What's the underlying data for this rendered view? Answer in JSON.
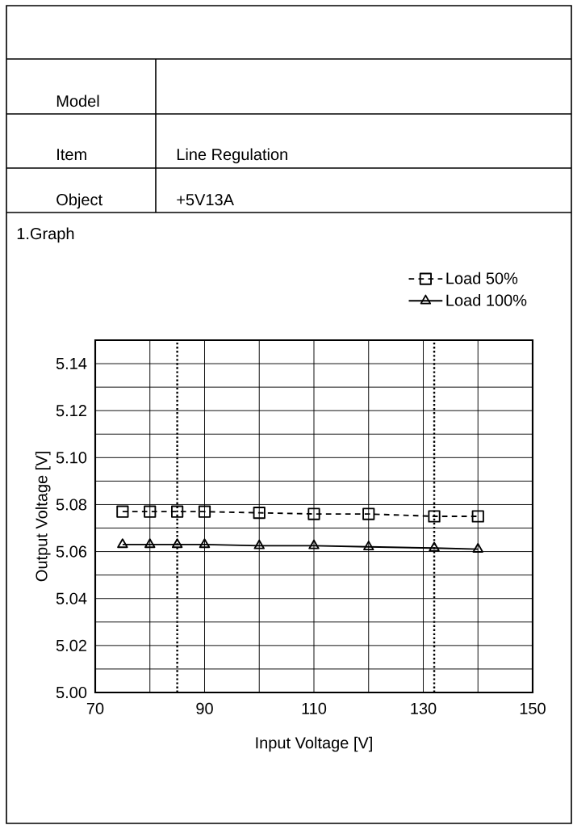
{
  "chart_data": {
    "type": "line",
    "annotations": [
      "Model",
      "Item",
      "Line Regulation",
      "Object",
      "+5V13A",
      "1.Graph"
    ],
    "xlabel": "Input Voltage  [V]",
    "ylabel": "Output Voltage [V]",
    "x": [
      75,
      80,
      85,
      90,
      100,
      110,
      120,
      132,
      140
    ],
    "series": [
      {
        "name": "Load  50%",
        "color": "#000000",
        "marker": "square",
        "line_style": "dashed",
        "values": [
          5.077,
          5.077,
          5.077,
          5.077,
          5.0765,
          5.076,
          5.076,
          5.075,
          5.075
        ]
      },
      {
        "name": "Load 100%",
        "color": "#000000",
        "marker": "triangle",
        "line_style": "solid",
        "values": [
          5.063,
          5.063,
          5.063,
          5.063,
          5.0625,
          5.0625,
          5.062,
          5.0615,
          5.061
        ]
      }
    ],
    "xlim": [
      70,
      150
    ],
    "xticks": [
      70,
      90,
      110,
      130,
      150
    ],
    "ylim": [
      5.0,
      5.15
    ],
    "yticks": [
      {
        "value": 5.0,
        "label": "5.00"
      },
      {
        "value": 5.02,
        "label": "5.02"
      },
      {
        "value": 5.04,
        "label": "5.04"
      },
      {
        "value": 5.06,
        "label": "5.06"
      },
      {
        "value": 5.08,
        "label": "5.08"
      },
      {
        "value": 5.1,
        "label": "5.10"
      },
      {
        "value": 5.12,
        "label": "5.12"
      },
      {
        "value": 5.14,
        "label": "5.14"
      }
    ],
    "ref_lines": [
      {
        "axis": "x",
        "value": 85,
        "line_style": "dotted"
      },
      {
        "axis": "x",
        "value": 132,
        "line_style": "dotted"
      }
    ],
    "grid": true,
    "legend": "top right"
  }
}
